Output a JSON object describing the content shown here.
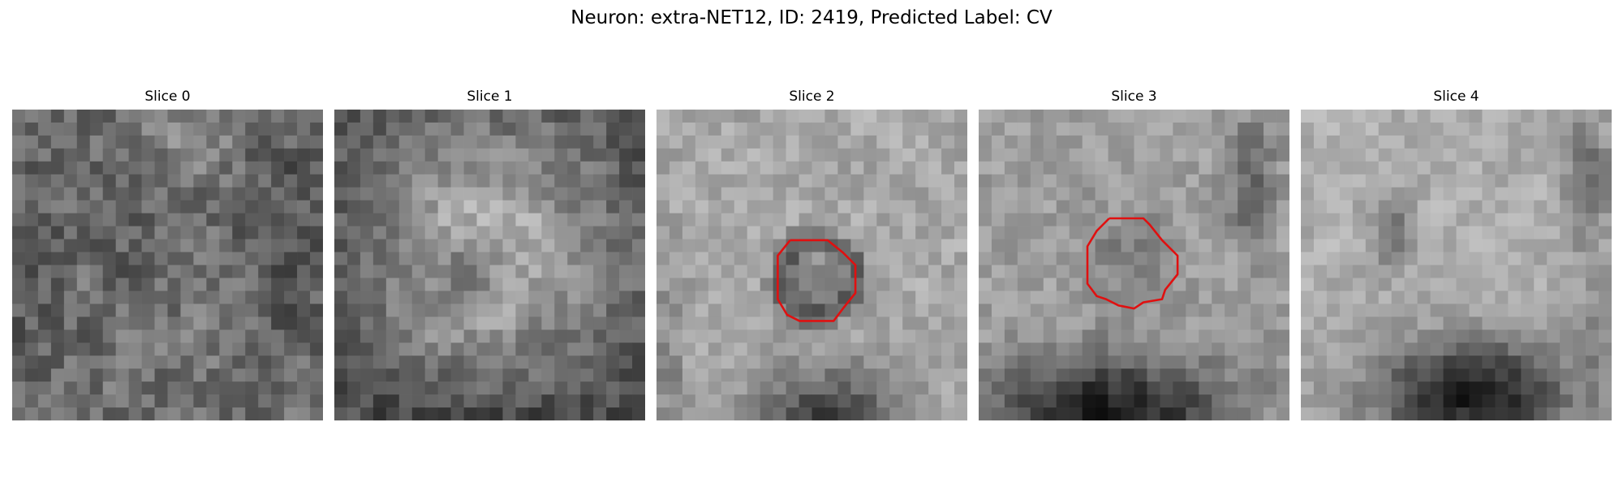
{
  "figure": {
    "title": "Neuron: extra-NET12, ID: 2419, Predicted Label: CV"
  },
  "slices": [
    {
      "label": "Slice 0",
      "has_contour": false
    },
    {
      "label": "Slice 1",
      "has_contour": false
    },
    {
      "label": "Slice 2",
      "has_contour": true
    },
    {
      "label": "Slice 3",
      "has_contour": true
    },
    {
      "label": "Slice 4",
      "has_contour": false
    }
  ],
  "colors": {
    "contour": "#e01010",
    "colormap": "gray"
  }
}
